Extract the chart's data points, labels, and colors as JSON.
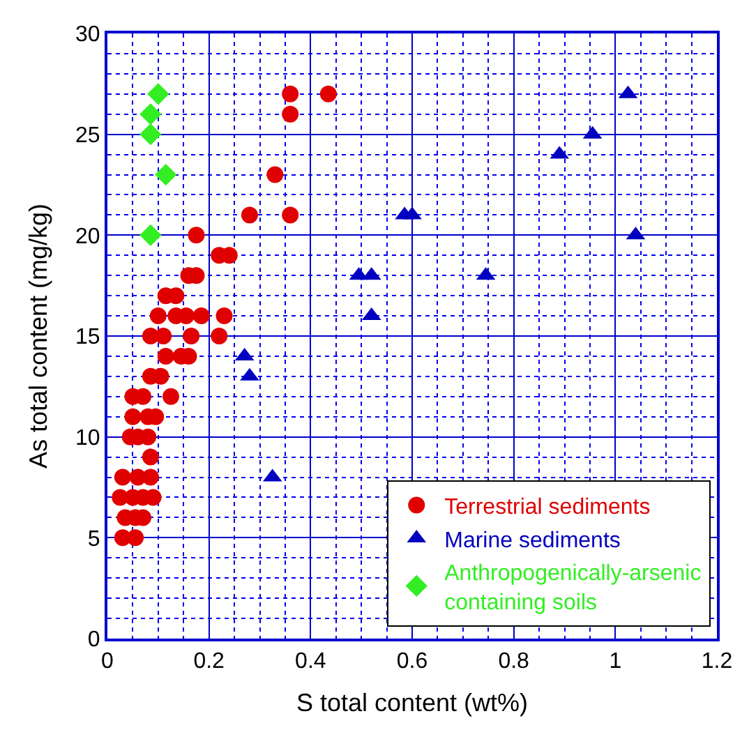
{
  "chart_data": {
    "type": "scatter",
    "xlabel": "S total content (wt%)",
    "ylabel": "As total content (mg/kg)",
    "xlim": [
      0,
      1.2
    ],
    "xticks": [
      0,
      {
        "value": 0.05,
        "label": null
      },
      {
        "value": 0.1,
        "label": null
      },
      {
        "value": 0.15,
        "label": null
      },
      0.2,
      {
        "value": 0.25,
        "label": null
      },
      {
        "value": 0.3,
        "label": null
      },
      {
        "value": 0.35,
        "label": null
      },
      0.4,
      {
        "value": 0.45,
        "label": null
      },
      {
        "value": 0.5,
        "label": null
      },
      {
        "value": 0.55,
        "label": null
      },
      0.6,
      {
        "value": 0.65,
        "label": null
      },
      {
        "value": 0.7,
        "label": null
      },
      {
        "value": 0.75,
        "label": null
      },
      0.8,
      {
        "value": 0.85,
        "label": null
      },
      {
        "value": 0.9,
        "label": null
      },
      {
        "value": 0.95,
        "label": null
      },
      1,
      {
        "value": 1.05,
        "label": null
      },
      {
        "value": 1.1,
        "label": null
      },
      {
        "value": 1.15,
        "label": null
      },
      1.2
    ],
    "ylim": [
      0,
      30
    ],
    "yticks": [
      0,
      {
        "value": 1,
        "label": null
      },
      {
        "value": 2,
        "label": null
      },
      {
        "value": 3,
        "label": null
      },
      {
        "value": 4,
        "label": null
      },
      5,
      {
        "value": 6,
        "label": null
      },
      {
        "value": 7,
        "label": null
      },
      {
        "value": 8,
        "label": null
      },
      {
        "value": 9,
        "label": null
      },
      10,
      {
        "value": 11,
        "label": null
      },
      {
        "value": 12,
        "label": null
      },
      {
        "value": 13,
        "label": null
      },
      {
        "value": 14,
        "label": null
      },
      15,
      {
        "value": 16,
        "label": null
      },
      {
        "value": 17,
        "label": null
      },
      {
        "value": 18,
        "label": null
      },
      {
        "value": 19,
        "label": null
      },
      20,
      {
        "value": 21,
        "label": null
      },
      {
        "value": 22,
        "label": null
      },
      {
        "value": 23,
        "label": null
      },
      {
        "value": 24,
        "label": null
      },
      25,
      {
        "value": 26,
        "label": null
      },
      {
        "value": 27,
        "label": null
      },
      {
        "value": 28,
        "label": null
      },
      {
        "value": 29,
        "label": null
      },
      30
    ],
    "grid": true,
    "legend": "bottom right",
    "series": [
      {
        "name": "Terrestrial sediments",
        "color": "#e00000",
        "marker": "circle",
        "x": [
          0.36,
          0.435,
          0.36,
          0.33,
          0.28,
          0.36,
          0.175,
          0.22,
          0.24,
          0.16,
          0.175,
          0.115,
          0.135,
          0.1,
          0.135,
          0.155,
          0.185,
          0.23,
          0.085,
          0.11,
          0.165,
          0.22,
          0.115,
          0.145,
          0.16,
          0.085,
          0.105,
          0.05,
          0.07,
          0.125,
          0.05,
          0.08,
          0.095,
          0.045,
          0.06,
          0.08,
          0.085,
          0.03,
          0.06,
          0.085,
          0.025,
          0.05,
          0.07,
          0.09,
          0.035,
          0.055,
          0.07,
          0.03,
          0.055
        ],
        "values": [
          27,
          27,
          26,
          23,
          21,
          21,
          20,
          19,
          19,
          18,
          18,
          17,
          17,
          16,
          16,
          16,
          16,
          16,
          15,
          15,
          15,
          15,
          14,
          14,
          14,
          13,
          13,
          12,
          12,
          12,
          11,
          11,
          11,
          10,
          10,
          10,
          9,
          8,
          8,
          8,
          7,
          7,
          7,
          7,
          6,
          6,
          6,
          5,
          5
        ]
      },
      {
        "name": "Marine sediments",
        "color": "#0000c0",
        "marker": "triangle",
        "x": [
          0.27,
          0.28,
          0.325,
          1.025,
          0.955,
          0.89,
          0.585,
          0.6,
          1.04,
          0.495,
          0.52,
          0.745,
          0.52
        ],
        "values": [
          14,
          13,
          8,
          27,
          25,
          24,
          21,
          21,
          20,
          18,
          18,
          18,
          16
        ]
      },
      {
        "name": "Anthropogenically-arsenic\ncontaining soils",
        "color": "#33ee22",
        "marker": "diamond",
        "x": [
          0.1,
          0.085,
          0.085,
          0.115,
          0.085
        ],
        "values": [
          27,
          26,
          25,
          23,
          20
        ]
      }
    ]
  }
}
